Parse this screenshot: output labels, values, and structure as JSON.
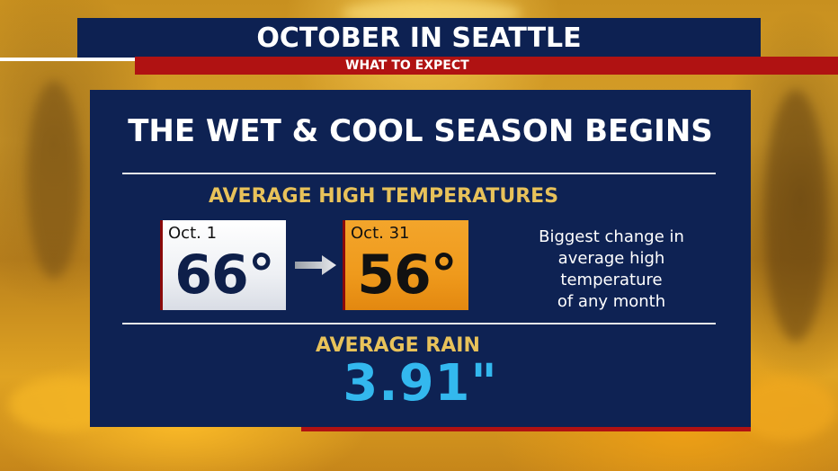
{
  "header": {
    "title": "OCTOBER IN SEATTLE",
    "subtitle": "WHAT TO EXPECT"
  },
  "panel": {
    "title": "THE WET & COOL SEASON BEGINS",
    "temps": {
      "heading": "AVERAGE HIGH TEMPERATURES",
      "start": {
        "date": "Oct. 1",
        "value": "66°"
      },
      "end": {
        "date": "Oct. 31",
        "value": "56°"
      },
      "arrow_icon": "right-arrow-icon",
      "note_lines": [
        "Biggest change in",
        "average high",
        "temperature",
        "of any month"
      ]
    },
    "rain": {
      "heading": "AVERAGE RAIN",
      "value": "3.91\""
    }
  },
  "colors": {
    "navy": "#0e2253",
    "red": "#b01212",
    "gold_heading": "#e8c25a",
    "rain_blue": "#33b8ee",
    "orange_card": "#ef9a1c"
  }
}
